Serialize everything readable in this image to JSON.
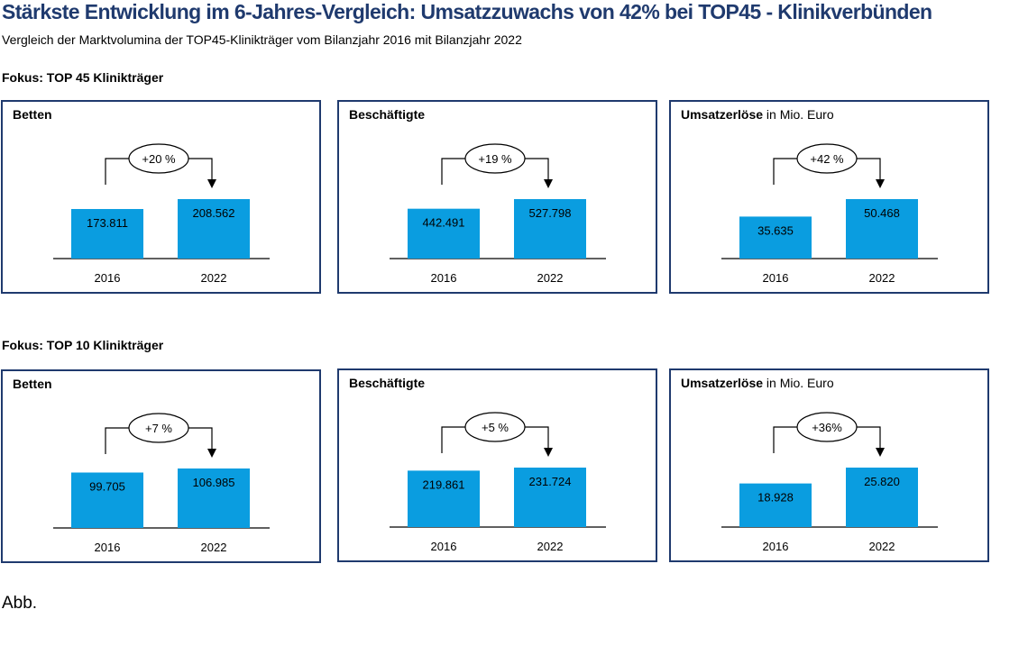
{
  "title": "Stärkste Entwicklung im 6-Jahres-Vergleich: Umsatzzuwachs von 42% bei TOP45 - Klinikverbünden",
  "subtitle": "Vergleich der Marktvolumina der TOP45-Klinikträger vom Bilanzjahr 2016 mit Bilanzjahr 2022",
  "sections": [
    {
      "label": "Fokus: TOP 45 Klinikträger"
    },
    {
      "label": "Fokus: TOP 10 Klinikträger"
    }
  ],
  "footer": "Abb.",
  "colors": {
    "bar": "#0a9de0",
    "border": "#1f3a6e",
    "title": "#1f3a6e"
  },
  "chart_data": [
    {
      "type": "bar",
      "title": "Betten",
      "title_suffix": "",
      "categories": [
        "2016",
        "2022"
      ],
      "values": [
        173811,
        208562
      ],
      "value_labels": [
        "173.811",
        "208.562"
      ],
      "change_label": "+20 %"
    },
    {
      "type": "bar",
      "title": "Beschäftigte",
      "title_suffix": "",
      "categories": [
        "2016",
        "2022"
      ],
      "values": [
        442491,
        527798
      ],
      "value_labels": [
        "442.491",
        "527.798"
      ],
      "change_label": "+19 %"
    },
    {
      "type": "bar",
      "title": "Umsatzerlöse",
      "title_suffix": " in Mio. Euro",
      "categories": [
        "2016",
        "2022"
      ],
      "values": [
        35635,
        50468
      ],
      "value_labels": [
        "35.635",
        "50.468"
      ],
      "change_label": "+42 %"
    },
    {
      "type": "bar",
      "title": "Betten",
      "title_suffix": "",
      "categories": [
        "2016",
        "2022"
      ],
      "values": [
        99705,
        106985
      ],
      "value_labels": [
        "99.705",
        "106.985"
      ],
      "change_label": "+7 %"
    },
    {
      "type": "bar",
      "title": "Beschäftigte",
      "title_suffix": "",
      "categories": [
        "2016",
        "2022"
      ],
      "values": [
        219861,
        231724
      ],
      "value_labels": [
        "219.861",
        "231.724"
      ],
      "change_label": "+5 %"
    },
    {
      "type": "bar",
      "title": "Umsatzerlöse",
      "title_suffix": " in Mio. Euro",
      "categories": [
        "2016",
        "2022"
      ],
      "values": [
        18928,
        25820
      ],
      "value_labels": [
        "18.928",
        "25.820"
      ],
      "change_label": "+36%"
    }
  ]
}
